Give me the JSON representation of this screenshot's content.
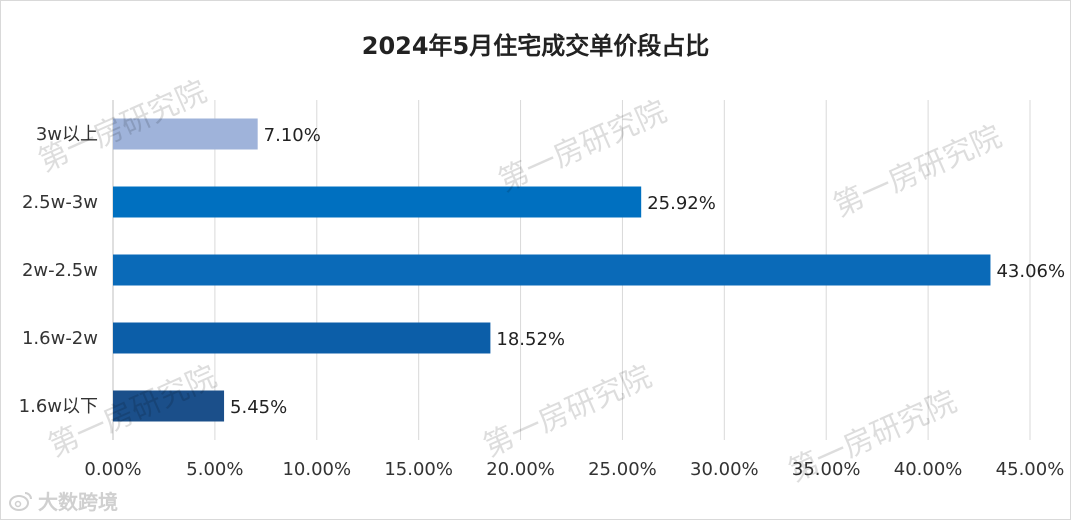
{
  "chart_data": {
    "type": "bar",
    "orientation": "horizontal",
    "title": "2024年5月住宅成交单价段占比",
    "categories": [
      "3w以上",
      "2.5w-3w",
      "2w-2.5w",
      "1.6w-2w",
      "1.6w以下"
    ],
    "values": [
      7.1,
      25.92,
      43.06,
      18.52,
      5.45
    ],
    "value_labels": [
      "7.10%",
      "25.92%",
      "43.06%",
      "18.52%",
      "5.45%"
    ],
    "bar_colors": [
      "#9fb3da",
      "#0070c0",
      "#0a6ab8",
      "#0c5ea8",
      "#1b4f8a"
    ],
    "xlim": [
      0,
      45
    ],
    "x_ticks": [
      "0.00%",
      "5.00%",
      "10.00%",
      "15.00%",
      "20.00%",
      "25.00%",
      "30.00%",
      "35.00%",
      "40.00%",
      "45.00%"
    ],
    "grid": "vertical gridlines",
    "legend": "none"
  },
  "watermark": "第一房研究院",
  "source_logo": {
    "icon": "weibo-style-logo-icon",
    "text": "大数跨境"
  }
}
